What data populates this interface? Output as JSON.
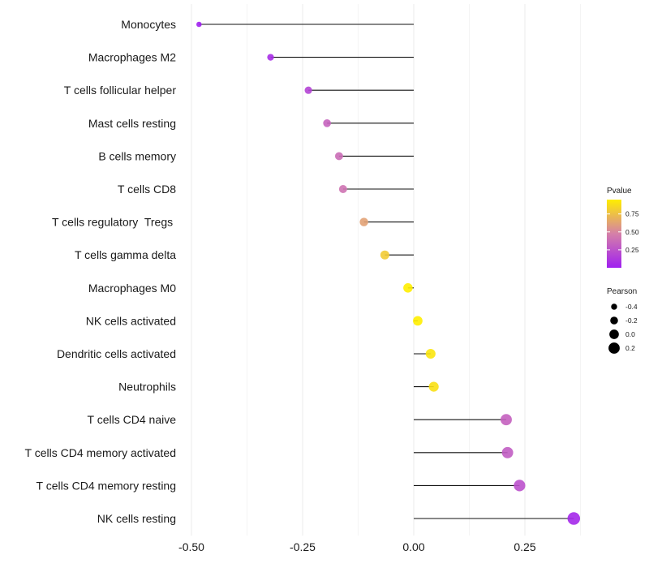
{
  "chart_data": {
    "type": "lollipop",
    "title": "",
    "xlabel": "",
    "ylabel": "",
    "xlim": [
      -0.5,
      0.37
    ],
    "xticks": [
      -0.5,
      -0.25,
      0.0,
      0.25
    ],
    "xtick_labels": [
      "-0.50",
      "-0.25",
      "0.00",
      "0.25"
    ],
    "grid": true,
    "categories": [
      "Monocytes",
      "Macrophages M2",
      "T cells follicular helper",
      "Mast cells resting",
      "B cells memory",
      "T cells CD8",
      "T cells regulatory  Tregs ",
      "T cells gamma delta",
      "Macrophages M0",
      "NK cells activated",
      "Dendritic cells activated",
      "Neutrophils",
      "T cells CD4 naive",
      "T cells CD4 memory activated",
      "T cells CD4 memory resting",
      "NK cells resting"
    ],
    "pearson": [
      -0.483,
      -0.322,
      -0.237,
      -0.195,
      -0.168,
      -0.159,
      -0.112,
      -0.065,
      -0.013,
      0.009,
      0.038,
      0.045,
      0.208,
      0.211,
      0.238,
      0.36
    ],
    "pvalue": [
      0.002,
      0.06,
      0.18,
      0.33,
      0.38,
      0.41,
      0.62,
      0.8,
      0.95,
      0.97,
      0.91,
      0.89,
      0.32,
      0.3,
      0.24,
      0.04
    ],
    "legend_color": {
      "title": "Pvalue",
      "ticks": [
        0.25,
        0.5,
        0.75
      ],
      "tick_labels": [
        "0.25",
        "0.50",
        "0.75"
      ],
      "range": [
        0.0,
        0.95
      ],
      "low_color": "#a020f0",
      "mid_color": "#d580a8",
      "high_color": "#ffee00"
    },
    "legend_size": {
      "title": "Pearson",
      "values": [
        -0.4,
        -0.2,
        0.0,
        0.2
      ],
      "labels": [
        "-0.4",
        "-0.2",
        "0.0",
        "0.2"
      ]
    }
  }
}
